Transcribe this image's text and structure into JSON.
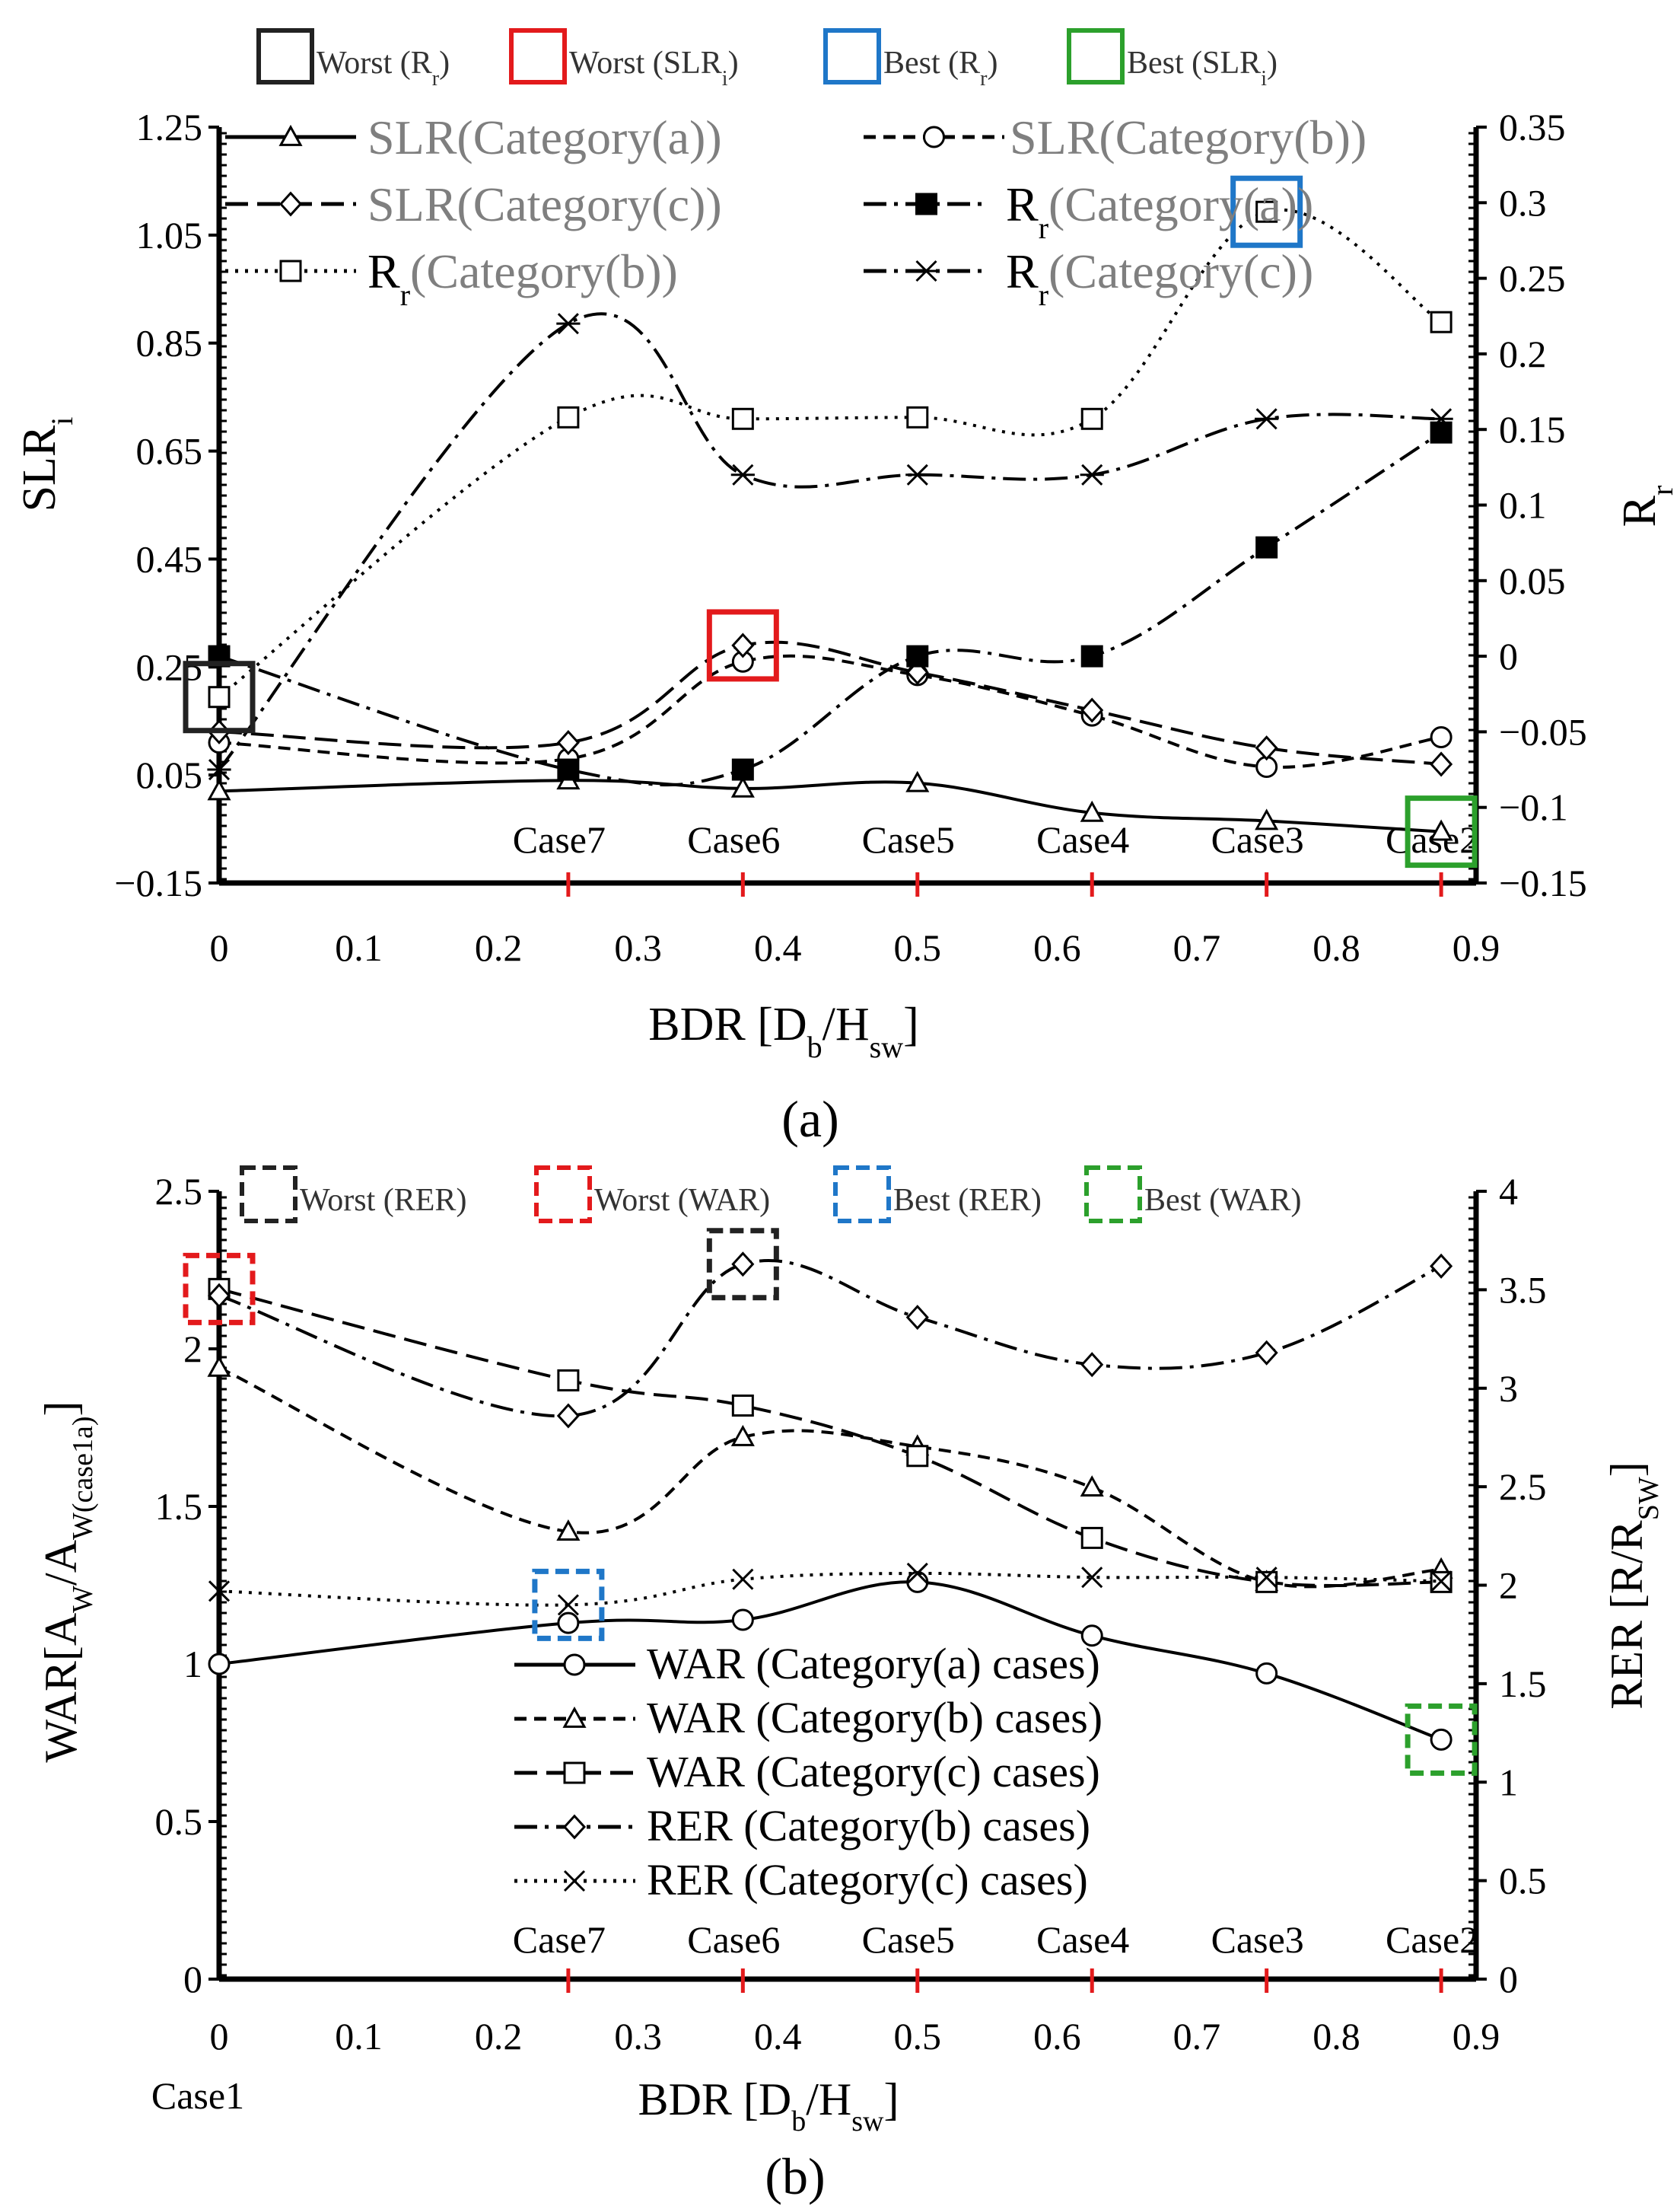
{
  "chart_data": [
    {
      "type": "line",
      "panel_label": "(a)",
      "xlabel": "BDR [D_b/H_sw]",
      "ylabel_left": "SLR_i",
      "ylabel_right": "R_r",
      "x_ticks": [
        "0",
        "0.1",
        "0.2",
        "0.3",
        "0.4",
        "0.5",
        "0.6",
        "0.7",
        "0.8",
        "0.9"
      ],
      "xlim": [
        0,
        0.9
      ],
      "ylim_left": [
        -0.15,
        1.25
      ],
      "ylim_right": [
        -0.15,
        0.35
      ],
      "y_ticks_left": [
        "1.25",
        "1.05",
        "0.85",
        "0.65",
        "0.45",
        "0.25",
        "0.05",
        "−0.15"
      ],
      "y_ticks_right": [
        "0.35",
        "0.3",
        "0.25",
        "0.2",
        "0.15",
        "0.1",
        "0.05",
        "0",
        "−0.05",
        "−0.1",
        "−0.15"
      ],
      "case_labels": [
        "Case7",
        "Case6",
        "Case5",
        "Case4",
        "Case3",
        "Case2"
      ],
      "case_x": [
        0.25,
        0.375,
        0.5,
        0.625,
        0.75,
        0.875
      ],
      "highlight_legend": [
        {
          "text": "Worst (R",
          "sub": "r",
          "close": ")",
          "color": "#222222"
        },
        {
          "text": "Worst (SLR",
          "sub": "i",
          "close": ")",
          "color": "#e31a1c"
        },
        {
          "text": "Best (R",
          "sub": "r",
          "close": ")",
          "color": "#1f77c8"
        },
        {
          "text": "Best (SLR",
          "sub": "i",
          "close": ")",
          "color": "#2ca02c"
        }
      ],
      "series": [
        {
          "name": "SLR(Category(a))",
          "axis": "left",
          "marker": "triangle",
          "dash": "solid",
          "x": [
            0,
            0.25,
            0.375,
            0.5,
            0.625,
            0.75,
            0.875
          ],
          "values": [
            0.02,
            0.04,
            0.025,
            0.035,
            -0.02,
            -0.035,
            -0.055
          ]
        },
        {
          "name": "SLR(Category(b))",
          "axis": "left",
          "marker": "circle",
          "dash": "dash",
          "x": [
            0,
            0.25,
            0.375,
            0.5,
            0.625,
            0.75,
            0.875
          ],
          "values": [
            0.11,
            0.08,
            0.26,
            0.235,
            0.16,
            0.065,
            0.12
          ]
        },
        {
          "name": "SLR(Category(c))",
          "axis": "left",
          "marker": "diamond",
          "dash": "longdash",
          "x": [
            0,
            0.25,
            0.375,
            0.5,
            0.625,
            0.75,
            0.875
          ],
          "values": [
            0.13,
            0.11,
            0.29,
            0.24,
            0.17,
            0.1,
            0.07
          ]
        },
        {
          "name": "R_r(Category(a))",
          "axis": "right",
          "marker": "square-filled",
          "dash": "dashdot",
          "x": [
            0,
            0.25,
            0.375,
            0.5,
            0.625,
            0.75,
            0.875
          ],
          "values": [
            0,
            -0.075,
            -0.075,
            0,
            0,
            0.072,
            0.148
          ]
        },
        {
          "name": "R_r(Category(b))",
          "axis": "right",
          "marker": "square",
          "dash": "dot",
          "x": [
            0,
            0.25,
            0.375,
            0.5,
            0.625,
            0.75,
            0.875
          ],
          "values": [
            -0.027,
            0.158,
            0.157,
            0.158,
            0.157,
            0.294,
            0.221
          ]
        },
        {
          "name": "R_r(Category(c))",
          "axis": "right",
          "marker": "star",
          "dash": "dashdot",
          "x": [
            0,
            0.25,
            0.375,
            0.5,
            0.625,
            0.75,
            0.875
          ],
          "values": [
            -0.075,
            0.22,
            0.12,
            0.12,
            0.12,
            0.157,
            0.157
          ]
        }
      ],
      "highlights": [
        {
          "label": "Worst (R_r)",
          "series": "R_r(Category(b))",
          "x": 0
        },
        {
          "label": "Worst (SLR_i)",
          "series": "SLR(Category(c))",
          "x": 0.375
        },
        {
          "label": "Best (R_r)",
          "series": "R_r(Category(b))",
          "x": 0.75
        },
        {
          "label": "Best (SLR_i)",
          "series": "SLR(Category(a))",
          "x": 0.875
        }
      ]
    },
    {
      "type": "line",
      "panel_label": "(b)",
      "xlabel": "BDR [D_b/H_sw]",
      "ylabel_left": "WAR[A_W/A_W(case1a)]",
      "ylabel_right": "RER [R/R_SW]",
      "x_ticks": [
        "0",
        "0.1",
        "0.2",
        "0.3",
        "0.4",
        "0.5",
        "0.6",
        "0.7",
        "0.8",
        "0.9"
      ],
      "xlim": [
        0,
        0.9
      ],
      "ylim_left": [
        0,
        2.5
      ],
      "ylim_right": [
        0,
        4
      ],
      "y_ticks_left": [
        "2.5",
        "2",
        "1.5",
        "1",
        "0.5",
        "0"
      ],
      "y_ticks_right": [
        "4",
        "3.5",
        "3",
        "2.5",
        "2",
        "1.5",
        "1",
        "0.5",
        "0"
      ],
      "case_labels": [
        "Case7",
        "Case6",
        "Case5",
        "Case4",
        "Case3",
        "Case2"
      ],
      "case_x": [
        0.25,
        0.375,
        0.5,
        0.625,
        0.75,
        0.875
      ],
      "extra_label": "Case1",
      "highlight_legend": [
        {
          "text": "Worst (RER)",
          "color": "#222222"
        },
        {
          "text": "Worst (WAR)",
          "color": "#e31a1c"
        },
        {
          "text": "Best (RER)",
          "color": "#1f77c8"
        },
        {
          "text": "Best (WAR)",
          "color": "#2ca02c"
        }
      ],
      "series": [
        {
          "name": "WAR (Category(a) cases)",
          "axis": "left",
          "marker": "circle",
          "dash": "solid",
          "x": [
            0,
            0.25,
            0.375,
            0.5,
            0.625,
            0.75,
            0.875
          ],
          "values": [
            1.0,
            1.13,
            1.14,
            1.26,
            1.09,
            0.97,
            0.76
          ]
        },
        {
          "name": "WAR (Category(b) cases)",
          "axis": "left",
          "marker": "triangle",
          "dash": "dash",
          "x": [
            0,
            0.25,
            0.375,
            0.5,
            0.625,
            0.75,
            0.875
          ],
          "values": [
            1.94,
            1.42,
            1.72,
            1.69,
            1.56,
            1.26,
            1.3
          ]
        },
        {
          "name": "WAR (Category(c) cases)",
          "axis": "left",
          "marker": "square",
          "dash": "longdash",
          "x": [
            0,
            0.25,
            0.375,
            0.5,
            0.625,
            0.75,
            0.875
          ],
          "values": [
            2.19,
            1.9,
            1.82,
            1.66,
            1.4,
            1.26,
            1.26
          ]
        },
        {
          "name": "RER (Category(b) cases)",
          "axis": "right",
          "marker": "diamond",
          "dash": "dashdot",
          "x": [
            0,
            0.25,
            0.375,
            0.5,
            0.625,
            0.75,
            0.875
          ],
          "values": [
            3.47,
            2.86,
            3.63,
            3.36,
            3.12,
            3.18,
            3.62
          ]
        },
        {
          "name": "RER (Category(c) cases)",
          "axis": "right",
          "marker": "x",
          "dash": "dot",
          "x": [
            0,
            0.25,
            0.375,
            0.5,
            0.625,
            0.75,
            0.875
          ],
          "values": [
            1.97,
            1.9,
            2.03,
            2.06,
            2.04,
            2.04,
            2.02
          ]
        }
      ],
      "highlights": [
        {
          "label": "Worst (RER)",
          "series": "RER (Category(b) cases)",
          "x": 0.375
        },
        {
          "label": "Worst (WAR)",
          "series": "WAR (Category(c) cases)",
          "x": 0
        },
        {
          "label": "Best (RER)",
          "series": "RER (Category(c) cases)",
          "x": 0.25
        },
        {
          "label": "Best (WAR)",
          "series": "WAR (Category(a) cases)",
          "x": 0.875
        }
      ]
    }
  ]
}
